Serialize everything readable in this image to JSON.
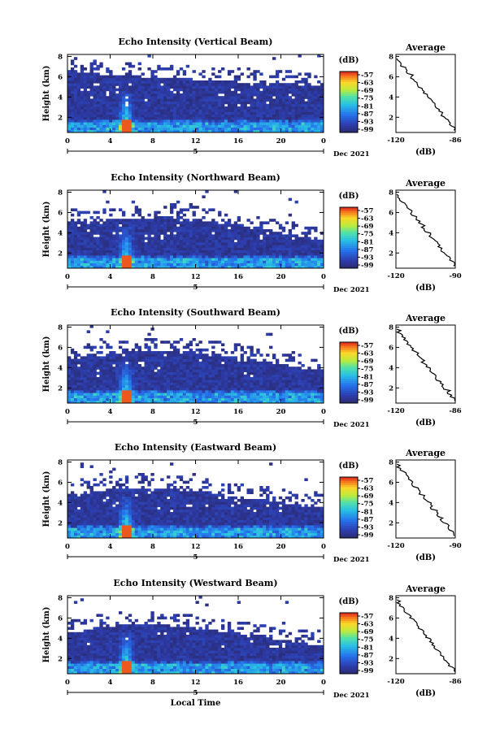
{
  "chart_data": [
    {
      "type": "heatmap",
      "title": "Echo Intensity (Vertical Beam)",
      "ylabel": "Height (km)",
      "xlabel": "",
      "xticks": [
        "0",
        "4",
        "8",
        "12",
        "16",
        "20",
        "0"
      ],
      "xlim": [
        0,
        24
      ],
      "yticks": [
        "2",
        "4",
        "6",
        "8"
      ],
      "ylim": [
        0.5,
        8.2
      ],
      "date_mid": "5",
      "date_right": "Dec 2021",
      "colorbar": {
        "label": "(dB)",
        "ticks": [
          "-57",
          "-63",
          "-69",
          "-75",
          "-81",
          "-87",
          "-93",
          "-99"
        ],
        "range": [
          -99,
          -57
        ]
      },
      "profile": {
        "title": "Average",
        "xlabel": "(dB)",
        "xticks": [
          "-120",
          "-86"
        ],
        "xlim": [
          -120,
          -86
        ],
        "yticks": [
          "2",
          "4",
          "6",
          "8"
        ]
      },
      "echo_top_km": [
        6.6,
        6.5,
        6.4,
        6.3,
        6.2,
        6.2,
        6.1,
        6.0,
        6.0,
        5.9,
        5.8,
        5.8,
        5.7,
        5.7,
        5.6,
        5.6,
        5.5,
        5.5,
        5.4,
        5.4,
        5.3,
        5.3,
        5.2,
        5.2
      ]
    },
    {
      "type": "heatmap",
      "title": "Echo Intensity (Northward Beam)",
      "ylabel": "Height (km)",
      "xlabel": "",
      "xticks": [
        "0",
        "4",
        "8",
        "12",
        "16",
        "20",
        "0"
      ],
      "xlim": [
        0,
        24
      ],
      "yticks": [
        "2",
        "4",
        "6",
        "8"
      ],
      "ylim": [
        0.5,
        8.2
      ],
      "date_mid": "5",
      "date_right": "Dec 2021",
      "colorbar": {
        "label": "(dB)",
        "ticks": [
          "-57",
          "-63",
          "-69",
          "-75",
          "-81",
          "-87",
          "-93",
          "-99"
        ],
        "range": [
          -99,
          -57
        ]
      },
      "profile": {
        "title": "Average",
        "xlabel": "(dB)",
        "xticks": [
          "-120",
          "-90"
        ],
        "xlim": [
          -120,
          -90
        ],
        "yticks": [
          "2",
          "4",
          "6",
          "8"
        ]
      },
      "echo_top_km": [
        5.0,
        5.0,
        5.1,
        5.2,
        5.3,
        5.4,
        5.4,
        5.5,
        5.5,
        5.6,
        5.5,
        5.4,
        5.3,
        5.2,
        5.0,
        4.8,
        4.6,
        4.5,
        4.4,
        4.2,
        4.0,
        3.8,
        3.6,
        3.4
      ]
    },
    {
      "type": "heatmap",
      "title": "Echo Intensity (Southward Beam)",
      "ylabel": "Height (km)",
      "xlabel": "",
      "xticks": [
        "0",
        "4",
        "8",
        "12",
        "16",
        "20",
        "0"
      ],
      "xlim": [
        0,
        24
      ],
      "yticks": [
        "2",
        "4",
        "6",
        "8"
      ],
      "ylim": [
        0.5,
        8.2
      ],
      "date_mid": "5",
      "date_right": "Dec 2021",
      "colorbar": {
        "label": "(dB)",
        "ticks": [
          "-57",
          "-63",
          "-69",
          "-75",
          "-81",
          "-87",
          "-93",
          "-99"
        ],
        "range": [
          -99,
          -57
        ]
      },
      "profile": {
        "title": "Average",
        "xlabel": "(dB)",
        "xticks": [
          "-120",
          "-86"
        ],
        "xlim": [
          -120,
          -86
        ],
        "yticks": [
          "2",
          "4",
          "6",
          "8"
        ]
      },
      "echo_top_km": [
        4.8,
        4.9,
        5.0,
        5.2,
        5.3,
        5.5,
        5.6,
        5.6,
        5.7,
        5.7,
        5.6,
        5.6,
        5.5,
        5.4,
        5.3,
        5.1,
        5.0,
        4.8,
        4.7,
        4.5,
        4.3,
        4.1,
        3.9,
        3.8
      ]
    },
    {
      "type": "heatmap",
      "title": "Echo Intensity (Eastward Beam)",
      "ylabel": "Height (km)",
      "xlabel": "",
      "xticks": [
        "0",
        "4",
        "8",
        "12",
        "16",
        "20",
        "0"
      ],
      "xlim": [
        0,
        24
      ],
      "yticks": [
        "2",
        "4",
        "6",
        "8"
      ],
      "ylim": [
        0.5,
        8.2
      ],
      "date_mid": "5",
      "date_right": "Dec 2021",
      "colorbar": {
        "label": "(dB)",
        "ticks": [
          "-57",
          "-63",
          "-69",
          "-75",
          "-81",
          "-87",
          "-93",
          "-99"
        ],
        "range": [
          -99,
          -57
        ]
      },
      "profile": {
        "title": "Average",
        "xlabel": "(dB)",
        "xticks": [
          "-120",
          "-90"
        ],
        "xlim": [
          -120,
          -90
        ],
        "yticks": [
          "2",
          "4",
          "6",
          "8"
        ]
      },
      "echo_top_km": [
        4.6,
        4.7,
        4.9,
        5.1,
        5.3,
        5.4,
        5.5,
        5.5,
        5.5,
        5.4,
        5.3,
        5.2,
        5.1,
        5.0,
        4.9,
        4.7,
        4.6,
        4.4,
        4.3,
        4.2,
        4.0,
        3.9,
        3.7,
        3.6
      ]
    },
    {
      "type": "heatmap",
      "title": "Echo Intensity (Westward Beam)",
      "ylabel": "Height (km)",
      "xlabel": "Local Time",
      "xticks": [
        "0",
        "4",
        "8",
        "12",
        "16",
        "20",
        "0"
      ],
      "xlim": [
        0,
        24
      ],
      "yticks": [
        "2",
        "4",
        "6",
        "8"
      ],
      "ylim": [
        0.5,
        8.2
      ],
      "date_mid": "5",
      "date_right": "Dec 2021",
      "colorbar": {
        "label": "(dB)",
        "ticks": [
          "-57",
          "-63",
          "-69",
          "-75",
          "-81",
          "-87",
          "-93",
          "-99"
        ],
        "range": [
          -99,
          -57
        ]
      },
      "profile": {
        "title": "Average",
        "xlabel": "(dB)",
        "xticks": [
          "-120",
          "-86"
        ],
        "xlim": [
          -120,
          -86
        ],
        "yticks": [
          "2",
          "4",
          "6",
          "8"
        ]
      },
      "echo_top_km": [
        4.6,
        4.7,
        4.9,
        5.1,
        5.2,
        5.3,
        5.3,
        5.4,
        5.4,
        5.3,
        5.2,
        5.1,
        5.0,
        4.9,
        4.7,
        4.6,
        4.4,
        4.2,
        4.1,
        4.0,
        3.8,
        3.7,
        3.5,
        3.4
      ]
    }
  ]
}
